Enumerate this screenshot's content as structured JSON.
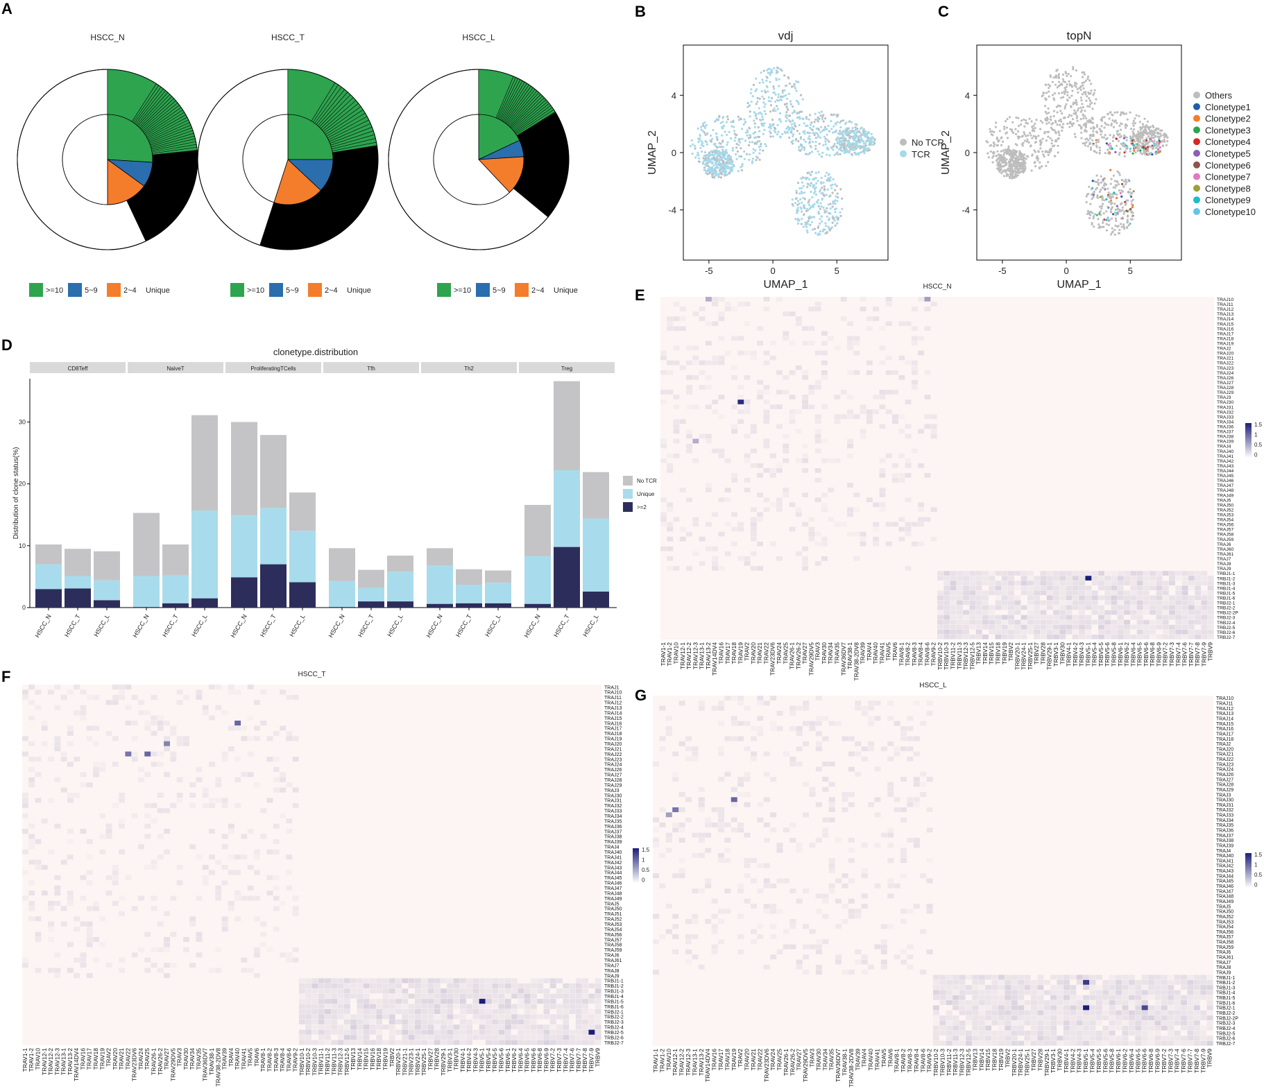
{
  "panel_letters": [
    "A",
    "B",
    "C",
    "D",
    "E",
    "F",
    "G"
  ],
  "chart_data": [
    {
      "panel": "A",
      "type": "pie",
      "subtype": "donut-inner-pie",
      "charts": [
        {
          "title": "HSCC_N",
          "inner": [
            {
              "label": ">=10",
              "value": 26
            },
            {
              "label": "5~9",
              "value": 9
            },
            {
              "label": "2~4",
              "value": 15
            },
            {
              "label": "Unique",
              "value": 50
            }
          ],
          "outer": {
            "expanded_share": 0.43
          }
        },
        {
          "title": "HSCC_T",
          "inner": [
            {
              "label": ">=10",
              "value": 25
            },
            {
              "label": "5~9",
              "value": 12
            },
            {
              "label": "2~4",
              "value": 18
            },
            {
              "label": "Unique",
              "value": 45
            }
          ],
          "outer": {
            "expanded_share": 0.55
          }
        },
        {
          "title": "HSCC_L",
          "inner": [
            {
              "label": ">=10",
              "value": 18
            },
            {
              "label": "5~9",
              "value": 6
            },
            {
              "label": "2~4",
              "value": 14
            },
            {
              "label": "Unique",
              "value": 62
            }
          ],
          "outer": {
            "expanded_share": 0.36
          }
        }
      ],
      "legend": [
        {
          "label": ">=10",
          "color": "#2ea44f"
        },
        {
          "label": "5~9",
          "color": "#2a6ead"
        },
        {
          "label": "2~4",
          "color": "#f47d2c"
        },
        {
          "label": "Unique",
          "color": "#ffffff"
        }
      ]
    },
    {
      "panel": "B",
      "type": "scatter",
      "title": "vdj",
      "xlabel": "UMAP_1",
      "ylabel": "UMAP_2",
      "xticks": [
        "-5",
        "0",
        "5"
      ],
      "yticks": [
        "4",
        "0",
        "-4"
      ],
      "xlim": [
        -7,
        9
      ],
      "ylim": [
        -7.5,
        7.5
      ],
      "legend": [
        {
          "label": "No TCR",
          "color": "#bdbdbd"
        },
        {
          "label": "TCR",
          "color": "#a6d8ea"
        }
      ]
    },
    {
      "panel": "C",
      "type": "scatter",
      "title": "topN",
      "xlabel": "UMAP_1",
      "ylabel": "UMAP_2",
      "xticks": [
        "-5",
        "0",
        "5"
      ],
      "yticks": [
        "4",
        "0",
        "-4"
      ],
      "xlim": [
        -7,
        9
      ],
      "ylim": [
        -7.5,
        7.5
      ],
      "legend": [
        {
          "label": "Others",
          "color": "#bdbdbd"
        },
        {
          "label": "Clonetype1",
          "color": "#1f5fa5"
        },
        {
          "label": "Clonetype2",
          "color": "#f47d2c"
        },
        {
          "label": "Clonetype3",
          "color": "#2ea44f"
        },
        {
          "label": "Clonetype4",
          "color": "#d62728"
        },
        {
          "label": "Clonetype5",
          "color": "#8c5fb5"
        },
        {
          "label": "Clonetype6",
          "color": "#8c564b"
        },
        {
          "label": "Clonetype7",
          "color": "#e377c2"
        },
        {
          "label": "Clonetype8",
          "color": "#9aa13a"
        },
        {
          "label": "Clonetype9",
          "color": "#17becf"
        },
        {
          "label": "Clonetype10",
          "color": "#66c4e4"
        }
      ]
    },
    {
      "panel": "D",
      "type": "bar",
      "subtype": "stacked-faceted",
      "title": "clonetype.distribution",
      "ylabel": "Distribution of clone status(%)",
      "ylim": [
        0,
        37
      ],
      "yticks": [
        0,
        10,
        20,
        30
      ],
      "categories": [
        "HSCC_N",
        "HSCC_T",
        "HSCC_L"
      ],
      "facets": [
        "CD8Teff",
        "NaiveT",
        "ProliferatingTCells",
        "Tfh",
        "Th2",
        "Treg"
      ],
      "series_names": [
        ">=2",
        "Unique",
        "No TCR"
      ],
      "series_colors": [
        "#2d2d5c",
        "#a8dcec",
        "#c4c4c6"
      ],
      "values": {
        "CD8Teff": [
          [
            3.0,
            4.0,
            3.2
          ],
          [
            3.1,
            2.0,
            4.4
          ],
          [
            1.2,
            3.2,
            4.7
          ]
        ],
        "NaiveT": [
          [
            0.1,
            5.0,
            10.2
          ],
          [
            0.7,
            4.5,
            5.0
          ],
          [
            1.5,
            14.2,
            15.4
          ]
        ],
        "ProliferatingTCells": [
          [
            4.9,
            10.0,
            15.1
          ],
          [
            7.0,
            9.1,
            11.8
          ],
          [
            4.1,
            8.3,
            6.2
          ]
        ],
        "Tfh": [
          [
            0.1,
            4.2,
            5.3
          ],
          [
            1.0,
            2.2,
            2.9
          ],
          [
            1.0,
            4.8,
            2.6
          ]
        ],
        "Th2": [
          [
            0.6,
            6.2,
            2.8
          ],
          [
            0.7,
            3.0,
            2.5
          ],
          [
            0.7,
            3.3,
            2.0
          ]
        ],
        "Treg": [
          [
            0.6,
            7.7,
            8.3
          ],
          [
            9.8,
            12.4,
            14.4
          ],
          [
            2.6,
            11.8,
            7.5
          ]
        ]
      },
      "legend": [
        {
          "label": "No TCR",
          "color": "#c4c4c6"
        },
        {
          "label": "Unique",
          "color": "#a8dcec"
        },
        {
          "label": ">=2",
          "color": "#2d2d5c"
        }
      ]
    },
    {
      "panel": "E",
      "type": "heatmap",
      "title": "HSCC_N",
      "scale": {
        "ticks": [
          "1.5",
          "1",
          "0.5",
          "0"
        ],
        "min": 0,
        "max": 1.5
      },
      "col_labels": [
        "TRAV1-1",
        "TRAV1-2",
        "TRAV10",
        "TRAV12-1",
        "TRAV12-2",
        "TRAV12-3",
        "TRAV13-1",
        "TRAV13-2",
        "TRAV14DV4",
        "TRAV16",
        "TRAV17",
        "TRAV18",
        "TRAV19",
        "TRAV2",
        "TRAV20",
        "TRAV21",
        "TRAV22",
        "TRAV23DV6",
        "TRAV24",
        "TRAV25",
        "TRAV26-1",
        "TRAV26-2",
        "TRAV27",
        "TRAV29DV5",
        "TRAV3",
        "TRAV30",
        "TRAV34",
        "TRAV35",
        "TRAV36DV7",
        "TRAV38-1",
        "TRAV38-2DV8",
        "TRAV39",
        "TRAV4",
        "TRAV40",
        "TRAV41",
        "TRAV5",
        "TRAV6",
        "TRAV8-1",
        "TRAV8-2",
        "TRAV8-3",
        "TRAV8-4",
        "TRAV8-6",
        "TRAV9-2",
        "TRBV10-2",
        "TRBV10-3",
        "TRBV11-2",
        "TRBV11-3",
        "TRBV12-3",
        "TRBV12-5",
        "TRBV13",
        "TRBV14",
        "TRBV15",
        "TRBV18",
        "TRBV19",
        "TRBV2",
        "TRBV20-1",
        "TRBV24-1",
        "TRBV25-1",
        "TRBV27",
        "TRBV28",
        "TRBV29-1",
        "TRBV3-1",
        "TRBV30",
        "TRBV4-1",
        "TRBV4-2",
        "TRBV4-3",
        "TRBV5-1",
        "TRBV5-4",
        "TRBV5-5",
        "TRBV5-6",
        "TRBV5-8",
        "TRBV6-1",
        "TRBV6-2",
        "TRBV6-4",
        "TRBV6-5",
        "TRBV6-6",
        "TRBV6-8",
        "TRBV6-9",
        "TRBV7-2",
        "TRBV7-3",
        "TRBV7-4",
        "TRBV7-6",
        "TRBV7-7",
        "TRBV7-8",
        "TRBV7-9",
        "TRBV9"
      ],
      "row_labels": [
        "TRAJ10",
        "TRAJ11",
        "TRAJ12",
        "TRAJ13",
        "TRAJ14",
        "TRAJ15",
        "TRAJ16",
        "TRAJ17",
        "TRAJ18",
        "TRAJ19",
        "TRAJ2",
        "TRAJ20",
        "TRAJ21",
        "TRAJ22",
        "TRAJ23",
        "TRAJ24",
        "TRAJ26",
        "TRAJ27",
        "TRAJ28",
        "TRAJ29",
        "TRAJ3",
        "TRAJ30",
        "TRAJ31",
        "TRAJ32",
        "TRAJ33",
        "TRAJ34",
        "TRAJ36",
        "TRAJ37",
        "TRAJ38",
        "TRAJ39",
        "TRAJ4",
        "TRAJ40",
        "TRAJ41",
        "TRAJ42",
        "TRAJ43",
        "TRAJ44",
        "TRAJ45",
        "TRAJ46",
        "TRAJ47",
        "TRAJ48",
        "TRAJ49",
        "TRAJ5",
        "TRAJ50",
        "TRAJ52",
        "TRAJ53",
        "TRAJ54",
        "TRAJ56",
        "TRAJ57",
        "TRAJ58",
        "TRAJ59",
        "TRAJ6",
        "TRAJ60",
        "TRAJ61",
        "TRAJ7",
        "TRAJ8",
        "TRAJ9",
        "TRBJ1-1",
        "TRBJ1-2",
        "TRBJ1-3",
        "TRBJ1-4",
        "TRBJ1-5",
        "TRBJ1-6",
        "TRBJ2-1",
        "TRBJ2-2",
        "TRBJ2-2P",
        "TRBJ2-3",
        "TRBJ2-4",
        "TRBJ2-5",
        "TRBJ2-6",
        "TRBJ2-7"
      ],
      "hotspots": [
        {
          "col": "TRAV19",
          "row": "TRAJ30",
          "value": 1.4
        },
        {
          "col": "TRBV5-1",
          "row": "TRBJ1-2",
          "value": 1.5
        },
        {
          "col": "TRAV8-6",
          "row": "TRAJ10",
          "value": 0.6
        },
        {
          "col": "TRAV13-2",
          "row": "TRAJ10",
          "value": 0.5
        },
        {
          "col": "TRAV12-3",
          "row": "TRAJ39",
          "value": 0.5
        }
      ]
    },
    {
      "panel": "F",
      "type": "heatmap",
      "title": "HSCC_T",
      "scale": {
        "ticks": [
          "1.5",
          "1",
          "0.5",
          "0"
        ],
        "min": 0,
        "max": 1.5
      },
      "col_labels": [
        "TRAV1-1",
        "TRAV1-2",
        "TRAV10",
        "TRAV12-1",
        "TRAV12-2",
        "TRAV12-3",
        "TRAV13-1",
        "TRAV13-2",
        "TRAV14DV4",
        "TRAV16",
        "TRAV17",
        "TRAV18",
        "TRAV19",
        "TRAV2",
        "TRAV20",
        "TRAV21",
        "TRAV22",
        "TRAV23DV6",
        "TRAV24",
        "TRAV25",
        "TRAV26-1",
        "TRAV26-2",
        "TRAV27",
        "TRAV29DV5",
        "TRAV3",
        "TRAV30",
        "TRAV34",
        "TRAV35",
        "TRAV36DV7",
        "TRAV38-1",
        "TRAV38-2DV8",
        "TRAV39",
        "TRAV4",
        "TRAV40",
        "TRAV41",
        "TRAV5",
        "TRAV6",
        "TRAV8-1",
        "TRAV8-2",
        "TRAV8-3",
        "TRAV8-4",
        "TRAV8-6",
        "TRAV9-2",
        "TRBV10-1",
        "TRBV10-2",
        "TRBV10-3",
        "TRBV11-1",
        "TRBV11-2",
        "TRBV11-3",
        "TRBV12-3",
        "TRBV12-5",
        "TRBV13",
        "TRBV14",
        "TRBV15",
        "TRBV16",
        "TRBV18",
        "TRBV19",
        "TRBV2",
        "TRBV20-1",
        "TRBV21-1",
        "TRBV23-1",
        "TRBV24-1",
        "TRBV25-1",
        "TRBV27",
        "TRBV28",
        "TRBV29-1",
        "TRBV3-1",
        "TRBV30",
        "TRBV4-1",
        "TRBV4-2",
        "TRBV4-3",
        "TRBV5-1",
        "TRBV5-4",
        "TRBV5-5",
        "TRBV5-6",
        "TRBV6-1",
        "TRBV6-2",
        "TRBV6-4",
        "TRBV6-5",
        "TRBV6-6",
        "TRBV6-8",
        "TRBV6-9",
        "TRBV7-2",
        "TRBV7-3",
        "TRBV7-4",
        "TRBV7-6",
        "TRBV7-7",
        "TRBV7-8",
        "TRBV7-9",
        "TRBV9"
      ],
      "row_labels": [
        "TRAJ1",
        "TRAJ10",
        "TRAJ11",
        "TRAJ12",
        "TRAJ13",
        "TRAJ14",
        "TRAJ15",
        "TRAJ16",
        "TRAJ17",
        "TRAJ18",
        "TRAJ19",
        "TRAJ20",
        "TRAJ21",
        "TRAJ22",
        "TRAJ23",
        "TRAJ24",
        "TRAJ26",
        "TRAJ27",
        "TRAJ28",
        "TRAJ29",
        "TRAJ3",
        "TRAJ30",
        "TRAJ31",
        "TRAJ32",
        "TRAJ33",
        "TRAJ34",
        "TRAJ35",
        "TRAJ36",
        "TRAJ37",
        "TRAJ38",
        "TRAJ39",
        "TRAJ4",
        "TRAJ40",
        "TRAJ41",
        "TRAJ42",
        "TRAJ43",
        "TRAJ44",
        "TRAJ45",
        "TRAJ46",
        "TRAJ47",
        "TRAJ48",
        "TRAJ49",
        "TRAJ5",
        "TRAJ50",
        "TRAJ51",
        "TRAJ52",
        "TRAJ53",
        "TRAJ54",
        "TRAJ56",
        "TRAJ57",
        "TRAJ58",
        "TRAJ59",
        "TRAJ6",
        "TRAJ61",
        "TRAJ7",
        "TRAJ8",
        "TRAJ9",
        "TRBJ1-1",
        "TRBJ1-2",
        "TRBJ1-3",
        "TRBJ1-4",
        "TRBJ1-5",
        "TRBJ1-6",
        "TRBJ2-1",
        "TRBJ2-2",
        "TRBJ2-3",
        "TRBJ2-4",
        "TRBJ2-5",
        "TRBJ2-6",
        "TRBJ2-7"
      ],
      "hotspots": [
        {
          "col": "TRAV40",
          "row": "TRAJ16",
          "value": 1.0
        },
        {
          "col": "TRAV25",
          "row": "TRAJ22",
          "value": 1.0
        },
        {
          "col": "TRAV22",
          "row": "TRAJ22",
          "value": 0.9
        },
        {
          "col": "TRAV27",
          "row": "TRAJ20",
          "value": 0.8
        },
        {
          "col": "TRBV5-1",
          "row": "TRBJ1-5",
          "value": 1.5
        },
        {
          "col": "TRBV7-9",
          "row": "TRBJ2-5",
          "value": 1.5
        }
      ]
    },
    {
      "panel": "G",
      "type": "heatmap",
      "title": "HSCC_L",
      "scale": {
        "ticks": [
          "1.5",
          "1",
          "0.5",
          "0"
        ],
        "min": 0,
        "max": 1.5
      },
      "col_labels": [
        "TRAV1-1",
        "TRAV1-2",
        "TRAV10",
        "TRAV12-1",
        "TRAV12-2",
        "TRAV12-3",
        "TRAV13-1",
        "TRAV13-2",
        "TRAV14DV4",
        "TRAV16",
        "TRAV17",
        "TRAV18",
        "TRAV19",
        "TRAV2",
        "TRAV20",
        "TRAV21",
        "TRAV22",
        "TRAV23DV6",
        "TRAV24",
        "TRAV25",
        "TRAV26-1",
        "TRAV26-2",
        "TRAV27",
        "TRAV29DV5",
        "TRAV3",
        "TRAV30",
        "TRAV34",
        "TRAV35",
        "TRAV36DV7",
        "TRAV38-1",
        "TRAV38-2DV8",
        "TRAV39",
        "TRAV4",
        "TRAV40",
        "TRAV41",
        "TRAV5",
        "TRAV6",
        "TRAV8-1",
        "TRAV8-2",
        "TRAV8-3",
        "TRAV8-4",
        "TRAV8-6",
        "TRAV9-2",
        "TRBV10-2",
        "TRBV10-3",
        "TRBV11-2",
        "TRBV11-3",
        "TRBV12-3",
        "TRBV12-5",
        "TRBV13",
        "TRBV14",
        "TRBV15",
        "TRBV18",
        "TRBV19",
        "TRBV2",
        "TRBV20-1",
        "TRBV24-1",
        "TRBV25-1",
        "TRBV27",
        "TRBV28",
        "TRBV29-1",
        "TRBV3-1",
        "TRBV30",
        "TRBV4-1",
        "TRBV4-2",
        "TRBV4-3",
        "TRBV5-1",
        "TRBV5-4",
        "TRBV5-5",
        "TRBV5-6",
        "TRBV5-8",
        "TRBV6-1",
        "TRBV6-2",
        "TRBV6-4",
        "TRBV6-5",
        "TRBV6-6",
        "TRBV6-8",
        "TRBV6-9",
        "TRBV7-2",
        "TRBV7-3",
        "TRBV7-4",
        "TRBV7-6",
        "TRBV7-7",
        "TRBV7-8",
        "TRBV7-9",
        "TRBV9"
      ],
      "row_labels": [
        "TRAJ10",
        "TRAJ11",
        "TRAJ12",
        "TRAJ13",
        "TRAJ14",
        "TRAJ15",
        "TRAJ16",
        "TRAJ17",
        "TRAJ18",
        "TRAJ2",
        "TRAJ20",
        "TRAJ21",
        "TRAJ22",
        "TRAJ23",
        "TRAJ24",
        "TRAJ26",
        "TRAJ27",
        "TRAJ28",
        "TRAJ29",
        "TRAJ3",
        "TRAJ30",
        "TRAJ31",
        "TRAJ32",
        "TRAJ33",
        "TRAJ34",
        "TRAJ35",
        "TRAJ36",
        "TRAJ37",
        "TRAJ38",
        "TRAJ39",
        "TRAJ4",
        "TRAJ40",
        "TRAJ41",
        "TRAJ42",
        "TRAJ43",
        "TRAJ44",
        "TRAJ45",
        "TRAJ46",
        "TRAJ47",
        "TRAJ48",
        "TRAJ49",
        "TRAJ5",
        "TRAJ50",
        "TRAJ52",
        "TRAJ53",
        "TRAJ54",
        "TRAJ56",
        "TRAJ57",
        "TRAJ58",
        "TRAJ59",
        "TRAJ6",
        "TRAJ61",
        "TRAJ7",
        "TRAJ8",
        "TRAJ9",
        "TRBJ1-1",
        "TRBJ1-2",
        "TRBJ1-3",
        "TRBJ1-4",
        "TRBJ1-5",
        "TRBJ1-6",
        "TRBJ2-1",
        "TRBJ2-2",
        "TRBJ2-2P",
        "TRBJ2-3",
        "TRBJ2-4",
        "TRBJ2-5",
        "TRBJ2-6",
        "TRBJ2-7"
      ],
      "hotspots": [
        {
          "col": "TRAV19",
          "row": "TRAJ30",
          "value": 1.0
        },
        {
          "col": "TRAV12-1",
          "row": "TRAJ32",
          "value": 0.9
        },
        {
          "col": "TRAV10",
          "row": "TRAJ33",
          "value": 0.6
        },
        {
          "col": "TRBV5-1",
          "row": "TRBJ1-2",
          "value": 1.3
        },
        {
          "col": "TRBV5-1",
          "row": "TRBJ2-1",
          "value": 1.5
        },
        {
          "col": "TRBV6-6",
          "row": "TRBJ2-1",
          "value": 1.2
        }
      ]
    }
  ]
}
